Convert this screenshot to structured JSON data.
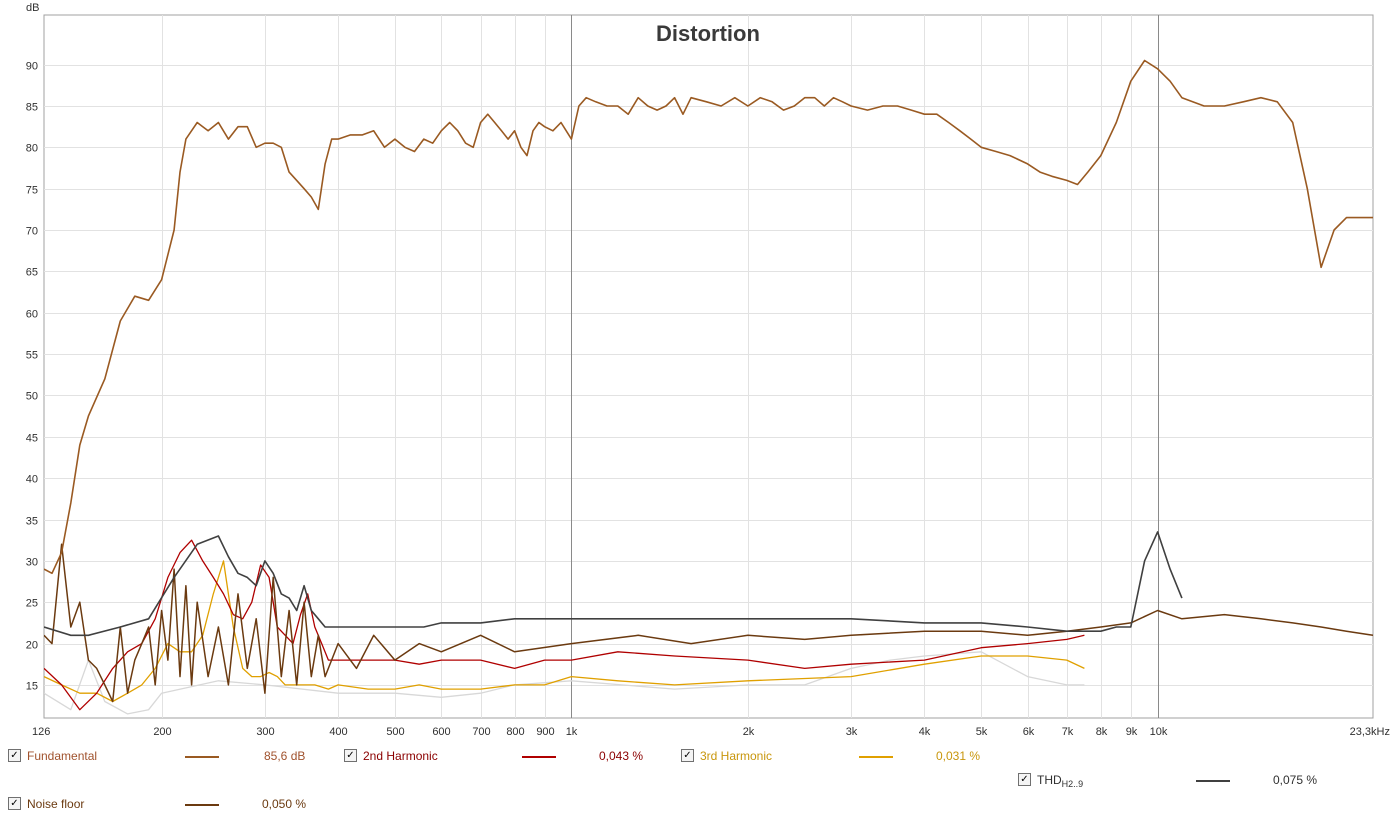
{
  "chart_data": {
    "type": "line",
    "title": "Distortion",
    "ylabel": "dB",
    "xunit": "Hz",
    "xscale": "log",
    "xlim": [
      126,
      23300
    ],
    "ylim": [
      11,
      96
    ],
    "grid": true,
    "yticks": [
      "90",
      "85",
      "80",
      "75",
      "70",
      "65",
      "60",
      "55",
      "50",
      "45",
      "40",
      "35",
      "30",
      "25",
      "20",
      "15"
    ],
    "ytick_values": [
      90,
      85,
      80,
      75,
      70,
      65,
      60,
      55,
      50,
      45,
      40,
      35,
      30,
      25,
      20,
      15
    ],
    "xticks": [
      {
        "f": 126,
        "label": "126"
      },
      {
        "f": 200,
        "label": "200"
      },
      {
        "f": 300,
        "label": "300"
      },
      {
        "f": 400,
        "label": "400"
      },
      {
        "f": 500,
        "label": "500"
      },
      {
        "f": 600,
        "label": "600"
      },
      {
        "f": 700,
        "label": "700"
      },
      {
        "f": 800,
        "label": "800"
      },
      {
        "f": 900,
        "label": "900"
      },
      {
        "f": 1000,
        "label": "1k"
      },
      {
        "f": 2000,
        "label": "2k"
      },
      {
        "f": 3000,
        "label": "3k"
      },
      {
        "f": 4000,
        "label": "4k"
      },
      {
        "f": 5000,
        "label": "5k"
      },
      {
        "f": 6000,
        "label": "6k"
      },
      {
        "f": 7000,
        "label": "7k"
      },
      {
        "f": 8000,
        "label": "8k"
      },
      {
        "f": 9000,
        "label": "9k"
      },
      {
        "f": 10000,
        "label": "10k"
      },
      {
        "f": 23300,
        "label": "23,3kHz"
      }
    ],
    "series": [
      {
        "name": "Fundamental",
        "color": "#9a5a22",
        "width": 1.6,
        "x": [
          126,
          130,
          135,
          140,
          145,
          150,
          160,
          170,
          180,
          190,
          200,
          210,
          215,
          220,
          230,
          240,
          250,
          260,
          270,
          280,
          290,
          300,
          310,
          320,
          330,
          340,
          350,
          360,
          370,
          380,
          390,
          400,
          420,
          440,
          460,
          480,
          500,
          520,
          540,
          560,
          580,
          600,
          620,
          640,
          660,
          680,
          700,
          720,
          740,
          760,
          780,
          800,
          820,
          840,
          860,
          880,
          900,
          930,
          960,
          1000,
          1030,
          1060,
          1100,
          1150,
          1200,
          1250,
          1300,
          1350,
          1400,
          1450,
          1500,
          1550,
          1600,
          1700,
          1800,
          1900,
          2000,
          2100,
          2200,
          2300,
          2400,
          2500,
          2600,
          2700,
          2800,
          2900,
          3000,
          3200,
          3400,
          3600,
          3800,
          4000,
          4200,
          4400,
          4600,
          4800,
          5000,
          5300,
          5600,
          6000,
          6300,
          6600,
          7000,
          7300,
          7600,
          8000,
          8500,
          9000,
          9500,
          10000,
          10500,
          11000,
          12000,
          13000,
          14000,
          15000,
          16000,
          17000,
          18000,
          19000,
          20000,
          21000,
          22000,
          23300
        ],
        "y": [
          29,
          28.5,
          31,
          37,
          44,
          47.5,
          52,
          59,
          62,
          61.5,
          64,
          70,
          77,
          81,
          83,
          82,
          83,
          81,
          82.5,
          82.5,
          80,
          80.5,
          80.5,
          80,
          77,
          76,
          75,
          74,
          72.5,
          78,
          81,
          81,
          81.5,
          81.5,
          82,
          80,
          81,
          80,
          79.5,
          81,
          80.5,
          82,
          83,
          82,
          80.5,
          80,
          83,
          84,
          83,
          82,
          81,
          82,
          80,
          79,
          82,
          83,
          82.5,
          82,
          83,
          81,
          85,
          86,
          85.5,
          85,
          85,
          84,
          86,
          85,
          84.5,
          85,
          86,
          84,
          86,
          85.5,
          85,
          86,
          85,
          86,
          85.5,
          84.5,
          85,
          86,
          86,
          85,
          86,
          85.5,
          85,
          84.5,
          85,
          85,
          84.5,
          84,
          84,
          83,
          82,
          81,
          80,
          79.5,
          79,
          78,
          77,
          76.5,
          76,
          75.5,
          77,
          79,
          83,
          88,
          90.5,
          89.5,
          88,
          86,
          85,
          85,
          85.5,
          86,
          85.5,
          83,
          75,
          65.5,
          70,
          71.5,
          71.5,
          71.5
        ]
      },
      {
        "name": "2nd Harmonic",
        "color": "#b00000",
        "width": 1.3,
        "x": [
          126,
          135,
          145,
          155,
          165,
          175,
          185,
          195,
          205,
          215,
          225,
          235,
          245,
          255,
          265,
          275,
          285,
          295,
          305,
          315,
          325,
          335,
          345,
          355,
          365,
          375,
          385,
          400,
          450,
          500,
          550,
          600,
          700,
          800,
          900,
          1000,
          1200,
          1500,
          2000,
          2500,
          3000,
          4000,
          5000,
          6000,
          7000,
          7500
        ],
        "y": [
          17,
          15,
          12,
          14,
          17,
          19,
          20,
          23,
          28,
          31,
          32.5,
          30,
          28,
          26,
          23.5,
          23,
          25,
          29.5,
          28,
          22,
          21,
          20,
          23.5,
          26,
          22,
          20,
          18,
          18,
          18,
          18,
          17.5,
          18,
          18,
          17,
          18,
          18,
          19,
          18.5,
          18,
          17,
          17.5,
          18,
          19.5,
          20,
          20.5,
          21
        ]
      },
      {
        "name": "3rd Harmonic",
        "color": "#e0a000",
        "width": 1.3,
        "x": [
          126,
          135,
          145,
          155,
          165,
          175,
          185,
          195,
          205,
          215,
          225,
          235,
          245,
          255,
          265,
          275,
          285,
          295,
          305,
          315,
          325,
          345,
          365,
          385,
          400,
          450,
          500,
          550,
          600,
          700,
          800,
          900,
          1000,
          1200,
          1500,
          2000,
          3000,
          4000,
          5000,
          6000,
          7000,
          7500
        ],
        "y": [
          16,
          15,
          14,
          14,
          13,
          14,
          15,
          17,
          20,
          19,
          19,
          21,
          26,
          30,
          22,
          17,
          16,
          16,
          16.5,
          16,
          15,
          15,
          15,
          14.5,
          15,
          14.5,
          14.5,
          15,
          14.5,
          14.5,
          15,
          15,
          16,
          15.5,
          15,
          15.5,
          16,
          17.5,
          18.5,
          18.5,
          18,
          17
        ]
      },
      {
        "name": "THD",
        "color": "#404040",
        "width": 1.6,
        "x": [
          126,
          140,
          150,
          170,
          190,
          210,
          230,
          250,
          260,
          270,
          280,
          290,
          300,
          310,
          320,
          330,
          340,
          350,
          360,
          370,
          380,
          400,
          420,
          460,
          500,
          560,
          600,
          700,
          800,
          1000,
          1500,
          2000,
          3000,
          4000,
          5000,
          6000,
          7000,
          8000,
          8500,
          9000,
          9500,
          10000,
          10500,
          11000
        ],
        "y": [
          22,
          21,
          21,
          22,
          23,
          28,
          32,
          33,
          30.5,
          28.5,
          28,
          27,
          30,
          28.5,
          26,
          25.5,
          24,
          27,
          24,
          23,
          22,
          22,
          22,
          22,
          22,
          22,
          22.5,
          22.5,
          23,
          23,
          23,
          23,
          23,
          22.5,
          22.5,
          22,
          21.5,
          21.5,
          22,
          22,
          30,
          33.5,
          29,
          25.5
        ]
      },
      {
        "name": "Noise floor",
        "color": "#6b3a10",
        "width": 1.5,
        "x": [
          126,
          130,
          135,
          140,
          145,
          150,
          155,
          160,
          165,
          170,
          175,
          180,
          185,
          190,
          195,
          200,
          205,
          210,
          215,
          220,
          225,
          230,
          240,
          250,
          260,
          270,
          280,
          290,
          300,
          310,
          320,
          330,
          340,
          350,
          360,
          370,
          380,
          400,
          430,
          460,
          500,
          550,
          600,
          700,
          800,
          1000,
          1300,
          1600,
          2000,
          2500,
          3000,
          4000,
          5000,
          6000,
          7000,
          8000,
          9000,
          10000,
          11000,
          13000,
          15000,
          17000,
          19000,
          21000,
          23300
        ],
        "y": [
          21,
          20,
          32,
          22,
          25,
          18,
          17,
          15,
          13,
          22,
          14,
          18,
          20,
          22,
          15,
          24,
          18,
          29,
          16,
          27,
          15,
          25,
          16,
          22,
          15,
          26,
          17,
          23,
          14,
          28,
          16,
          24,
          15,
          25,
          16,
          21,
          16,
          20,
          17,
          21,
          18,
          20,
          19,
          21,
          19,
          20,
          21,
          20,
          21,
          20.5,
          21,
          21.5,
          21.5,
          21,
          21.5,
          22,
          22.5,
          24,
          23,
          23.5,
          23,
          22.5,
          22,
          21.5,
          21
        ]
      },
      {
        "name": "",
        "color": "#d8d8d8",
        "width": 1.3,
        "x": [
          126,
          140,
          150,
          160,
          175,
          190,
          200,
          250,
          300,
          400,
          500,
          600,
          700,
          800,
          1000,
          1500,
          2000,
          2500,
          3000,
          3500,
          4000,
          5000,
          6000,
          7000,
          7500
        ],
        "y": [
          14,
          12,
          18,
          13,
          11.5,
          12,
          14,
          15.5,
          15,
          14,
          14,
          13.5,
          14,
          15,
          15.5,
          14.5,
          15,
          15,
          17,
          18,
          18.5,
          19,
          16,
          15,
          15
        ]
      }
    ],
    "legend": [
      {
        "label": "Fundamental",
        "value": "85,6 dB",
        "color": "#9a5a22",
        "text_color": "#a0522d"
      },
      {
        "label": "2nd Harmonic",
        "value": "0,043 %",
        "color": "#b00000",
        "text_color": "#8b0000"
      },
      {
        "label": "3rd Harmonic",
        "value": "0,031 %",
        "color": "#e0a000",
        "text_color": "#c8960c"
      },
      {
        "label": "THD",
        "sub": "H2..9",
        "value": "0,075 %",
        "color": "#404040",
        "text_color": "#303030"
      },
      {
        "label": "Noise floor",
        "value": "0,050 %",
        "color": "#6b3a10",
        "text_color": "#6b3a10"
      }
    ]
  },
  "legend": {
    "check_mark": "✓",
    "items": [
      {
        "label": "Fundamental",
        "value": "85,6 dB"
      },
      {
        "label": "2nd Harmonic",
        "value": "0,043 %"
      },
      {
        "label": "3rd Harmonic",
        "value": "0,031 %"
      },
      {
        "label": "THD",
        "sub": "H2..9",
        "value": "0,075 %"
      },
      {
        "label": "Noise floor",
        "value": "0,050 %"
      }
    ]
  }
}
